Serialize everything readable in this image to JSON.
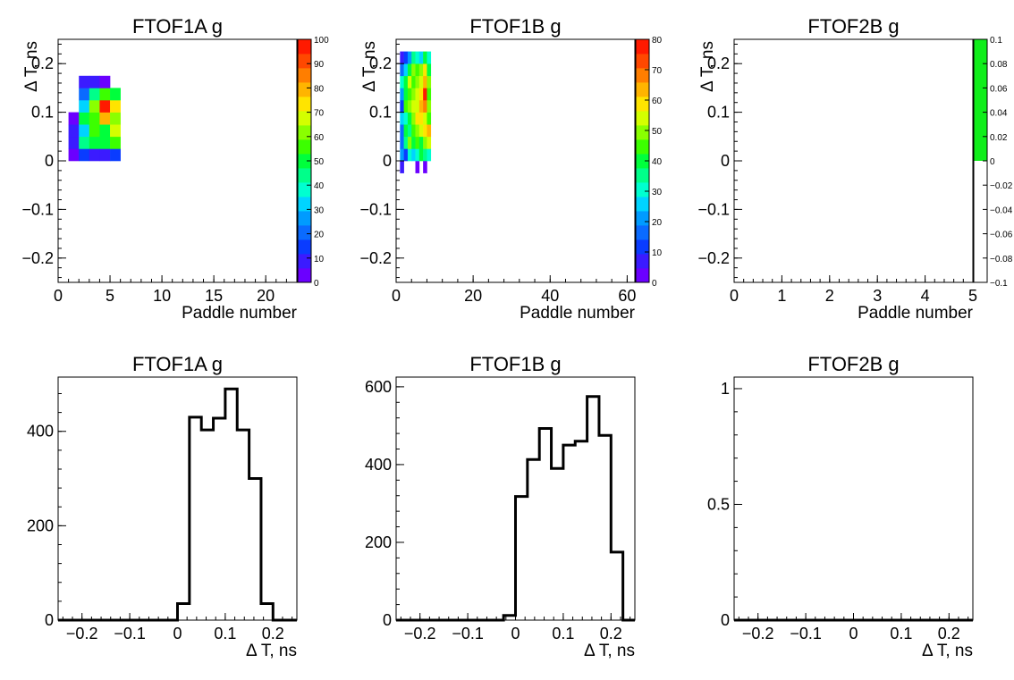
{
  "chart_data": [
    {
      "type": "heatmap",
      "title": "FTOF1A g",
      "xlabel": "Paddle number",
      "ylabel": "Δ T, ns",
      "xlim": [
        0,
        23
      ],
      "ylim": [
        -0.25,
        0.25
      ],
      "x_ticks": [
        0,
        5,
        10,
        15,
        20
      ],
      "x_tick_labels": [
        "0",
        "5",
        "10",
        "15",
        "20"
      ],
      "y_ticks": [
        -0.2,
        -0.1,
        0,
        0.1,
        0.2
      ],
      "y_tick_labels": [
        "−0.2",
        "−0.1",
        "0",
        "0.1",
        "0.2"
      ],
      "colorbar": {
        "min": 0,
        "max": 100,
        "ticks": [
          0,
          10,
          20,
          30,
          40,
          50,
          60,
          70,
          80,
          90,
          100
        ],
        "tick_labels": [
          "0",
          "10",
          "20",
          "30",
          "40",
          "50",
          "60",
          "70",
          "80",
          "90",
          "100"
        ]
      },
      "x_bin_edges": [
        1,
        2,
        3,
        4,
        5,
        6
      ],
      "y_bin_edges": [
        0,
        0.025,
        0.05,
        0.075,
        0.1,
        0.125,
        0.15,
        0.175,
        0.2
      ],
      "z": [
        [
          5,
          8,
          6,
          3,
          null,
          null,
          null,
          null
        ],
        [
          12,
          42,
          30,
          48,
          32,
          18,
          8,
          null
        ],
        [
          10,
          52,
          58,
          55,
          60,
          45,
          9,
          null
        ],
        [
          6,
          50,
          50,
          78,
          95,
          55,
          5,
          null
        ],
        [
          14,
          55,
          65,
          60,
          72,
          52,
          null,
          null
        ]
      ]
    },
    {
      "type": "heatmap",
      "title": "FTOF1B g",
      "xlabel": "Paddle number",
      "ylabel": "Δ T, ns",
      "xlim": [
        0,
        62
      ],
      "ylim": [
        -0.25,
        0.25
      ],
      "x_ticks": [
        0,
        20,
        40,
        60
      ],
      "x_tick_labels": [
        "0",
        "20",
        "40",
        "60"
      ],
      "y_ticks": [
        -0.2,
        -0.1,
        0,
        0.1,
        0.2
      ],
      "y_tick_labels": [
        "−0.2",
        "−0.1",
        "0",
        "0.1",
        "0.2"
      ],
      "colorbar": {
        "min": 0,
        "max": 80,
        "ticks": [
          0,
          10,
          20,
          30,
          40,
          50,
          60,
          70,
          80
        ],
        "tick_labels": [
          "0",
          "10",
          "20",
          "30",
          "40",
          "50",
          "60",
          "70",
          "80"
        ]
      },
      "x_bin_edges": [
        1,
        2,
        3,
        4,
        5,
        6,
        7,
        8,
        9
      ],
      "y_bin_edges": [
        -0.025,
        0,
        0.025,
        0.05,
        0.075,
        0.1,
        0.125,
        0.15,
        0.175,
        0.2,
        0.225
      ],
      "z": [
        [
          5,
          22,
          15,
          18,
          25,
          12,
          20,
          30,
          15,
          8
        ],
        [
          null,
          10,
          35,
          40,
          30,
          45,
          38,
          42,
          25,
          12
        ],
        [
          null,
          30,
          48,
          35,
          42,
          50,
          45,
          55,
          40,
          20
        ],
        [
          null,
          25,
          40,
          45,
          50,
          55,
          48,
          45,
          50,
          35
        ],
        [
          4,
          30,
          45,
          50,
          60,
          52,
          55,
          50,
          45,
          30
        ],
        [
          null,
          40,
          42,
          55,
          58,
          62,
          60,
          55,
          50,
          25
        ],
        [
          4,
          35,
          50,
          60,
          55,
          70,
          78,
          65,
          60,
          40
        ],
        [
          null,
          30,
          55,
          62,
          45,
          50,
          45,
          48,
          40,
          30
        ]
      ]
    },
    {
      "type": "heatmap",
      "title": "FTOF2B g",
      "xlabel": "Paddle number",
      "ylabel": "Δ T, ns",
      "xlim": [
        0,
        5
      ],
      "ylim": [
        -0.25,
        0.25
      ],
      "x_ticks": [
        0,
        1,
        2,
        3,
        4,
        5
      ],
      "x_tick_labels": [
        "0",
        "1",
        "2",
        "3",
        "4",
        "5"
      ],
      "y_ticks": [
        -0.2,
        -0.1,
        0,
        0.1,
        0.2
      ],
      "y_tick_labels": [
        "−0.2",
        "−0.1",
        "0",
        "0.1",
        "0.2"
      ],
      "colorbar": {
        "min": -0.1,
        "max": 0.1,
        "fill_from": 0,
        "ticks": [
          -0.1,
          -0.08,
          -0.06,
          -0.04,
          -0.02,
          0,
          0.02,
          0.04,
          0.06,
          0.08,
          0.1
        ],
        "tick_labels": [
          "−0.1",
          "−0.08",
          "−0.06",
          "−0.04",
          "−0.02",
          "0",
          "0.02",
          "0.04",
          "0.06",
          "0.08",
          "0.1"
        ]
      },
      "x_bin_edges": [],
      "y_bin_edges": [],
      "z": []
    },
    {
      "type": "step",
      "title": "FTOF1A g",
      "xlabel": "Δ T, ns",
      "ylabel": "",
      "xlim": [
        -0.25,
        0.25
      ],
      "ylim": [
        0,
        515
      ],
      "x_ticks": [
        -0.2,
        -0.1,
        0,
        0.1,
        0.2
      ],
      "x_tick_labels": [
        "−0.2",
        "−0.1",
        "0",
        "0.1",
        "0.2"
      ],
      "y_ticks": [
        0,
        200,
        400
      ],
      "y_tick_labels": [
        "0",
        "200",
        "400"
      ],
      "bin_edges": [
        -0.25,
        -0.225,
        -0.2,
        -0.175,
        -0.15,
        -0.125,
        -0.1,
        -0.075,
        -0.05,
        -0.025,
        0,
        0.025,
        0.05,
        0.075,
        0.1,
        0.125,
        0.15,
        0.175,
        0.2,
        0.225,
        0.25
      ],
      "values": [
        0,
        0,
        0,
        0,
        0,
        0,
        0,
        0,
        0,
        0,
        35,
        430,
        403,
        428,
        490,
        403,
        300,
        35,
        0,
        0
      ]
    },
    {
      "type": "step",
      "title": "FTOF1B g",
      "xlabel": "Δ T, ns",
      "ylabel": "",
      "xlim": [
        -0.25,
        0.25
      ],
      "ylim": [
        0,
        625
      ],
      "x_ticks": [
        -0.2,
        -0.1,
        0,
        0.1,
        0.2
      ],
      "x_tick_labels": [
        "−0.2",
        "−0.1",
        "0",
        "0.1",
        "0.2"
      ],
      "y_ticks": [
        0,
        200,
        400,
        600
      ],
      "y_tick_labels": [
        "0",
        "200",
        "400",
        "600"
      ],
      "bin_edges": [
        -0.25,
        -0.225,
        -0.2,
        -0.175,
        -0.15,
        -0.125,
        -0.1,
        -0.075,
        -0.05,
        -0.025,
        0,
        0.025,
        0.05,
        0.075,
        0.1,
        0.125,
        0.15,
        0.175,
        0.2,
        0.225,
        0.25
      ],
      "values": [
        0,
        0,
        0,
        0,
        0,
        0,
        0,
        0,
        0,
        12,
        318,
        413,
        493,
        390,
        450,
        460,
        575,
        475,
        175,
        0
      ]
    },
    {
      "type": "step",
      "title": "FTOF2B g",
      "xlabel": "Δ T, ns",
      "ylabel": "",
      "xlim": [
        -0.25,
        0.25
      ],
      "ylim": [
        0,
        1.05
      ],
      "x_ticks": [
        -0.2,
        -0.1,
        0,
        0.1,
        0.2
      ],
      "x_tick_labels": [
        "−0.2",
        "−0.1",
        "0",
        "0.1",
        "0.2"
      ],
      "y_ticks": [
        0,
        0.5,
        1
      ],
      "y_tick_labels": [
        "0",
        "0.5",
        "1"
      ],
      "bin_edges": [
        -0.25,
        -0.225,
        -0.2,
        -0.175,
        -0.15,
        -0.125,
        -0.1,
        -0.075,
        -0.05,
        -0.025,
        0,
        0.025,
        0.05,
        0.075,
        0.1,
        0.125,
        0.15,
        0.175,
        0.2,
        0.225,
        0.25
      ],
      "values": [
        0,
        0,
        0,
        0,
        0,
        0,
        0,
        0,
        0,
        0,
        0,
        0,
        0,
        0,
        0,
        0,
        0,
        0,
        0,
        0
      ]
    }
  ]
}
